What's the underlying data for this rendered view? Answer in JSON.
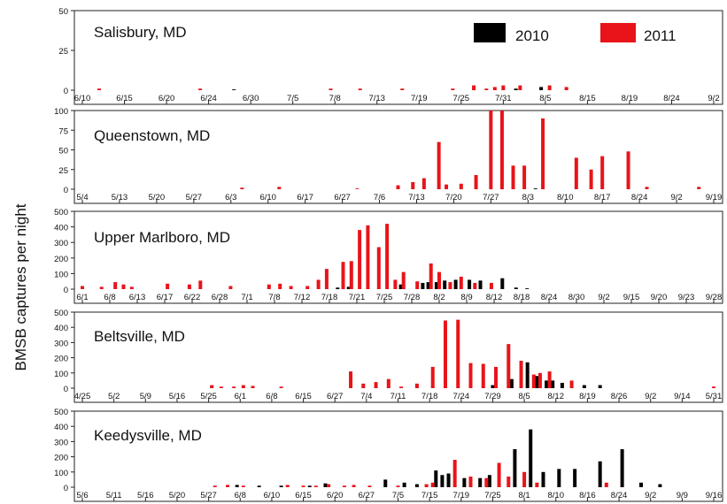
{
  "figure": {
    "ylabel": "BMSB captures per night",
    "legend": [
      {
        "label": "2010",
        "color": "#000000"
      },
      {
        "label": "2011",
        "color": "#e8141a"
      }
    ]
  },
  "chart_data": [
    {
      "type": "bar",
      "title": "Salisbury,  MD",
      "ylim": [
        0,
        50
      ],
      "yticks": [
        0,
        25,
        50
      ],
      "xticks": [
        "6/10",
        "6/15",
        "6/20",
        "6/24",
        "6/30",
        "7/5",
        "7/8",
        "7/13",
        "7/19",
        "7/25",
        "7/31",
        "8/5",
        "8/15",
        "8/19",
        "8/24",
        "9/2"
      ],
      "series": [
        {
          "name": "2010",
          "points": [
            [
              3.6,
              0.5
            ],
            [
              10.3,
              1
            ],
            [
              10.9,
              2
            ]
          ]
        },
        {
          "name": "2011",
          "points": [
            [
              0.4,
              1
            ],
            [
              2.8,
              1
            ],
            [
              5.9,
              1
            ],
            [
              6.6,
              1
            ],
            [
              7.6,
              1
            ],
            [
              8.8,
              1
            ],
            [
              9.3,
              3
            ],
            [
              9.6,
              1
            ],
            [
              9.8,
              2
            ],
            [
              10.0,
              3
            ],
            [
              10.4,
              3
            ],
            [
              11.1,
              3
            ],
            [
              11.5,
              2
            ]
          ]
        }
      ]
    },
    {
      "type": "bar",
      "title": "Queenstown, MD",
      "ylim": [
        0,
        100
      ],
      "yticks": [
        0,
        25,
        50,
        75,
        100
      ],
      "xticks": [
        "5/4",
        "5/13",
        "5/20",
        "5/27",
        "6/3",
        "6/10",
        "6/17",
        "6/27",
        "7/6",
        "7/13",
        "7/20",
        "7/27",
        "8/3",
        "8/10",
        "8/17",
        "8/24",
        "9/2",
        "9/19"
      ],
      "series": [
        {
          "name": "2010",
          "points": [
            [
              12.2,
              1
            ]
          ]
        },
        {
          "name": "2011",
          "points": [
            [
              4.3,
              2
            ],
            [
              5.3,
              3
            ],
            [
              7.4,
              1
            ],
            [
              8.5,
              5
            ],
            [
              8.9,
              9
            ],
            [
              9.2,
              14
            ],
            [
              9.6,
              60
            ],
            [
              9.8,
              6
            ],
            [
              10.2,
              7
            ],
            [
              10.6,
              18
            ],
            [
              11.0,
              100
            ],
            [
              11.3,
              100
            ],
            [
              11.6,
              30
            ],
            [
              11.9,
              30
            ],
            [
              12.4,
              90
            ],
            [
              13.3,
              40
            ],
            [
              13.7,
              25
            ],
            [
              14.0,
              42
            ],
            [
              14.7,
              48
            ],
            [
              15.2,
              3
            ],
            [
              16.6,
              3
            ]
          ]
        }
      ]
    },
    {
      "type": "bar",
      "title": "Upper Marlboro, MD",
      "ylim": [
        0,
        500
      ],
      "yticks": [
        0,
        100,
        200,
        300,
        400,
        500
      ],
      "xticks": [
        "6/1",
        "6/8",
        "6/13",
        "6/17",
        "6/22",
        "6/28",
        "7/1",
        "7/8",
        "7/12",
        "7/18",
        "7/21",
        "7/25",
        "7/28",
        "8/2",
        "8/9",
        "8/12",
        "8/18",
        "8/24",
        "8/30",
        "9/2",
        "9/15",
        "9/20",
        "9/23",
        "9/28"
      ],
      "series": [
        {
          "name": "2010",
          "points": [
            [
              9.3,
              10
            ],
            [
              9.7,
              15
            ],
            [
              11.6,
              30
            ],
            [
              12.4,
              40
            ],
            [
              12.6,
              45
            ],
            [
              12.9,
              45
            ],
            [
              13.2,
              55
            ],
            [
              13.6,
              60
            ],
            [
              14.1,
              60
            ],
            [
              14.5,
              55
            ],
            [
              15.3,
              70
            ],
            [
              15.8,
              10
            ],
            [
              16.2,
              5
            ]
          ]
        },
        {
          "name": "2011",
          "points": [
            [
              0.0,
              20
            ],
            [
              0.7,
              15
            ],
            [
              1.2,
              45
            ],
            [
              1.5,
              30
            ],
            [
              1.8,
              15
            ],
            [
              3.1,
              35
            ],
            [
              3.9,
              30
            ],
            [
              4.3,
              55
            ],
            [
              5.4,
              20
            ],
            [
              6.8,
              30
            ],
            [
              7.2,
              35
            ],
            [
              7.6,
              20
            ],
            [
              8.2,
              20
            ],
            [
              8.6,
              60
            ],
            [
              8.9,
              130
            ],
            [
              9.5,
              175
            ],
            [
              9.8,
              180
            ],
            [
              10.1,
              380
            ],
            [
              10.4,
              410
            ],
            [
              10.8,
              270
            ],
            [
              11.1,
              420
            ],
            [
              11.4,
              60
            ],
            [
              11.7,
              110
            ],
            [
              12.2,
              50
            ],
            [
              12.7,
              165
            ],
            [
              13.0,
              110
            ],
            [
              13.4,
              45
            ],
            [
              13.8,
              80
            ],
            [
              14.3,
              40
            ],
            [
              14.9,
              40
            ]
          ]
        }
      ]
    },
    {
      "type": "bar",
      "title": "Beltsville,  MD",
      "ylim": [
        0,
        500
      ],
      "yticks": [
        0,
        100,
        200,
        300,
        400,
        500
      ],
      "xticks": [
        "4/25",
        "5/2",
        "5/9",
        "5/16",
        "5/25",
        "6/1",
        "6/8",
        "6/15",
        "6/27",
        "7/4",
        "7/11",
        "7/18",
        "7/24",
        "7/29",
        "8/5",
        "8/12",
        "8/19",
        "8/26",
        "9/2",
        "9/14",
        "5/31"
      ],
      "series": [
        {
          "name": "2010",
          "points": [
            [
              13.0,
              20
            ],
            [
              13.6,
              60
            ],
            [
              14.1,
              170
            ],
            [
              14.4,
              80
            ],
            [
              14.7,
              50
            ],
            [
              14.9,
              50
            ],
            [
              15.2,
              35
            ],
            [
              15.9,
              20
            ],
            [
              16.4,
              20
            ]
          ]
        },
        {
          "name": "2011",
          "points": [
            [
              4.1,
              20
            ],
            [
              4.4,
              10
            ],
            [
              4.8,
              10
            ],
            [
              5.1,
              20
            ],
            [
              5.4,
              15
            ],
            [
              6.3,
              10
            ],
            [
              8.5,
              110
            ],
            [
              8.9,
              30
            ],
            [
              9.3,
              40
            ],
            [
              9.7,
              60
            ],
            [
              10.1,
              10
            ],
            [
              10.6,
              30
            ],
            [
              11.1,
              140
            ],
            [
              11.5,
              445
            ],
            [
              11.9,
              450
            ],
            [
              12.3,
              165
            ],
            [
              12.7,
              160
            ],
            [
              13.1,
              140
            ],
            [
              13.5,
              290
            ],
            [
              13.9,
              180
            ],
            [
              14.3,
              90
            ],
            [
              14.5,
              100
            ],
            [
              14.8,
              110
            ],
            [
              15.5,
              50
            ],
            [
              20.0,
              10
            ]
          ]
        }
      ]
    },
    {
      "type": "bar",
      "title": "Keedysville, MD",
      "ylim": [
        0,
        500
      ],
      "yticks": [
        0,
        100,
        200,
        300,
        400,
        500
      ],
      "xticks": [
        "5/6",
        "5/11",
        "5/16",
        "5/20",
        "5/27",
        "6/8",
        "6/10",
        "6/15",
        "6/20",
        "6/27",
        "7/5",
        "7/15",
        "7/19",
        "7/25",
        "8/1",
        "8/10",
        "8/16",
        "8/24",
        "9/2",
        "9/9",
        "9/16"
      ],
      "series": [
        {
          "name": "2010",
          "points": [
            [
              4.9,
              15
            ],
            [
              5.6,
              10
            ],
            [
              6.3,
              10
            ],
            [
              7.2,
              10
            ],
            [
              7.7,
              25
            ],
            [
              9.6,
              50
            ],
            [
              10.2,
              30
            ],
            [
              10.6,
              20
            ],
            [
              11.2,
              110
            ],
            [
              11.4,
              80
            ],
            [
              11.6,
              90
            ],
            [
              12.1,
              60
            ],
            [
              12.6,
              60
            ],
            [
              12.9,
              80
            ],
            [
              13.7,
              250
            ],
            [
              14.2,
              380
            ],
            [
              14.6,
              100
            ],
            [
              15.1,
              120
            ],
            [
              15.6,
              120
            ],
            [
              16.4,
              170
            ],
            [
              17.1,
              250
            ],
            [
              17.7,
              30
            ],
            [
              18.3,
              20
            ]
          ]
        },
        {
          "name": "2011",
          "points": [
            [
              4.2,
              10
            ],
            [
              4.6,
              15
            ],
            [
              5.1,
              10
            ],
            [
              6.5,
              15
            ],
            [
              7.0,
              10
            ],
            [
              7.4,
              10
            ],
            [
              7.8,
              20
            ],
            [
              8.3,
              10
            ],
            [
              8.6,
              15
            ],
            [
              9.1,
              10
            ],
            [
              10.0,
              10
            ],
            [
              10.9,
              20
            ],
            [
              11.1,
              30
            ],
            [
              11.8,
              180
            ],
            [
              12.3,
              70
            ],
            [
              12.8,
              60
            ],
            [
              13.2,
              160
            ],
            [
              13.5,
              70
            ],
            [
              14.0,
              100
            ],
            [
              14.4,
              30
            ],
            [
              16.6,
              30
            ]
          ]
        }
      ]
    }
  ]
}
